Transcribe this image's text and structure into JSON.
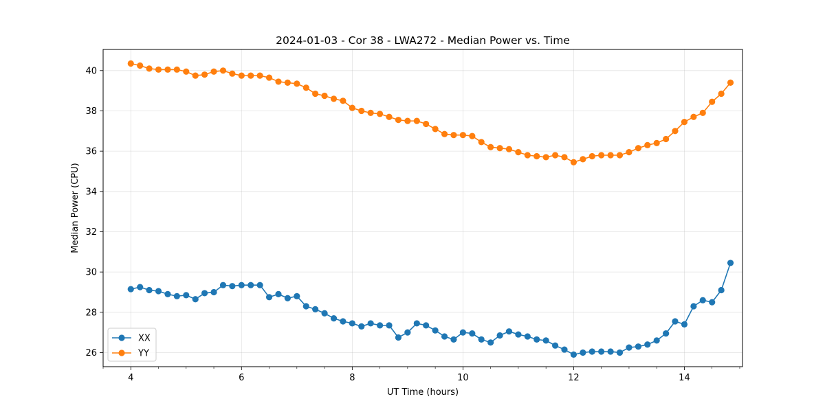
{
  "chart_data": {
    "type": "line",
    "title": "2024-01-03 - Cor 38 - LWA272 - Median Power vs. Time",
    "xlabel": "UT Time (hours)",
    "ylabel": "Median Power (CPU)",
    "xlim": [
      3.5,
      15.05
    ],
    "ylim": [
      25.3,
      41.05
    ],
    "xticks": [
      4,
      6,
      8,
      10,
      12,
      14
    ],
    "xtick_labels": [
      "4",
      "6",
      "8",
      "10",
      "12",
      "14"
    ],
    "yticks": [
      26,
      28,
      30,
      32,
      34,
      36,
      38,
      40
    ],
    "ytick_labels": [
      "26",
      "28",
      "30",
      "32",
      "34",
      "36",
      "38",
      "40"
    ],
    "grid": true,
    "legend_position": "lower-left",
    "x": [
      4.0,
      4.167,
      4.333,
      4.5,
      4.667,
      4.833,
      5.0,
      5.167,
      5.333,
      5.5,
      5.667,
      5.833,
      6.0,
      6.167,
      6.333,
      6.5,
      6.667,
      6.833,
      7.0,
      7.167,
      7.333,
      7.5,
      7.667,
      7.833,
      8.0,
      8.167,
      8.333,
      8.5,
      8.667,
      8.833,
      9.0,
      9.167,
      9.333,
      9.5,
      9.667,
      9.833,
      10.0,
      10.167,
      10.333,
      10.5,
      10.667,
      10.833,
      11.0,
      11.167,
      11.333,
      11.5,
      11.667,
      11.833,
      12.0,
      12.167,
      12.333,
      12.5,
      12.667,
      12.833,
      13.0,
      13.167,
      13.333,
      13.5,
      13.667,
      13.833,
      14.0,
      14.167,
      14.333,
      14.5,
      14.667,
      14.833
    ],
    "series": [
      {
        "name": "XX",
        "color": "#1f77b4",
        "values": [
          29.15,
          29.25,
          29.1,
          29.05,
          28.9,
          28.8,
          28.85,
          28.65,
          28.95,
          29.0,
          29.35,
          29.3,
          29.35,
          29.35,
          29.35,
          28.75,
          28.9,
          28.7,
          28.8,
          28.3,
          28.15,
          27.95,
          27.7,
          27.55,
          27.45,
          27.3,
          27.45,
          27.35,
          27.35,
          26.75,
          27.0,
          27.45,
          27.35,
          27.1,
          26.8,
          26.65,
          27.0,
          26.95,
          26.65,
          26.5,
          26.85,
          27.05,
          26.9,
          26.8,
          26.65,
          26.6,
          26.35,
          26.15,
          25.9,
          26.0,
          26.05,
          26.05,
          26.05,
          26.0,
          26.25,
          26.3,
          26.4,
          26.6,
          26.95,
          27.55,
          27.4,
          28.3,
          28.6,
          28.5,
          29.1,
          30.45
        ]
      },
      {
        "name": "YY",
        "color": "#ff7f0e",
        "values": [
          40.35,
          40.25,
          40.1,
          40.05,
          40.05,
          40.05,
          39.95,
          39.75,
          39.8,
          39.95,
          40.0,
          39.85,
          39.75,
          39.75,
          39.75,
          39.65,
          39.45,
          39.4,
          39.35,
          39.15,
          38.85,
          38.75,
          38.6,
          38.5,
          38.15,
          38.0,
          37.9,
          37.85,
          37.7,
          37.55,
          37.5,
          37.5,
          37.35,
          37.1,
          36.85,
          36.8,
          36.8,
          36.75,
          36.45,
          36.2,
          36.15,
          36.1,
          35.95,
          35.8,
          35.75,
          35.7,
          35.8,
          35.7,
          35.45,
          35.6,
          35.75,
          35.8,
          35.8,
          35.8,
          35.95,
          36.15,
          36.3,
          36.4,
          36.6,
          37.0,
          37.45,
          37.7,
          37.9,
          38.45,
          38.85,
          39.4
        ]
      }
    ]
  }
}
